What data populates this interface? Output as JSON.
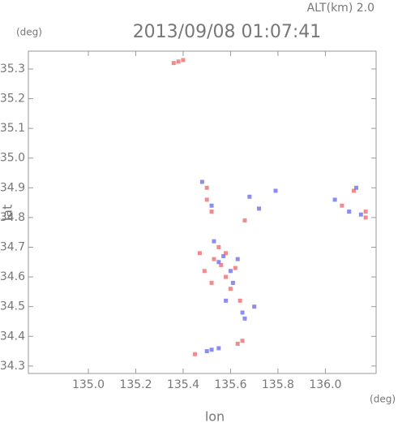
{
  "chart_data": {
    "type": "scatter",
    "title": "2013/09/08 01:07:41",
    "subtitle": "ALT(km) 2.0",
    "x_label": "lon",
    "y_label": "lat",
    "x_unit": "(deg)",
    "y_unit": "(deg)",
    "xlim": [
      134.747,
      136.214
    ],
    "ylim": [
      34.275,
      35.36
    ],
    "xticks": [
      {
        "value": 135.0,
        "label": "135.0"
      },
      135.2,
      135.4,
      135.6,
      135.8,
      {
        "value": 136.0,
        "label": "136.0"
      }
    ],
    "yticks": [
      34.3,
      34.4,
      34.5,
      34.6,
      34.7,
      34.8,
      34.9,
      {
        "value": 35.0,
        "label": "35.0"
      },
      35.1,
      35.2,
      35.3
    ],
    "series": [
      {
        "color": "#f07878",
        "x": [
          135.4,
          135.38,
          135.36,
          135.5,
          135.52,
          135.47,
          135.49,
          135.53,
          135.56,
          135.58,
          135.52,
          135.62,
          135.6,
          135.64,
          135.65,
          135.63,
          136.07,
          136.17,
          136.17,
          136.12,
          135.66,
          135.55,
          135.45,
          135.58,
          135.5
        ],
        "values": [
          35.33,
          35.325,
          35.32,
          34.86,
          34.82,
          34.68,
          34.62,
          34.66,
          34.64,
          34.6,
          34.58,
          34.63,
          34.56,
          34.52,
          34.385,
          34.375,
          34.84,
          34.82,
          34.8,
          34.89,
          34.79,
          34.7,
          34.34,
          34.68,
          34.9
        ]
      },
      {
        "color": "#7878f0",
        "x": [
          135.52,
          135.48,
          135.55,
          135.57,
          135.6,
          135.63,
          135.58,
          135.65,
          135.7,
          135.5,
          135.55,
          135.52,
          136.13,
          136.04,
          136.1,
          136.15,
          135.72,
          135.68,
          135.79,
          135.53,
          135.61,
          135.66
        ],
        "values": [
          34.84,
          34.92,
          34.65,
          34.67,
          34.62,
          34.66,
          34.52,
          34.48,
          34.5,
          34.35,
          34.36,
          34.355,
          34.9,
          34.86,
          34.82,
          34.81,
          34.83,
          34.87,
          34.89,
          34.72,
          34.58,
          34.46
        ]
      }
    ]
  }
}
